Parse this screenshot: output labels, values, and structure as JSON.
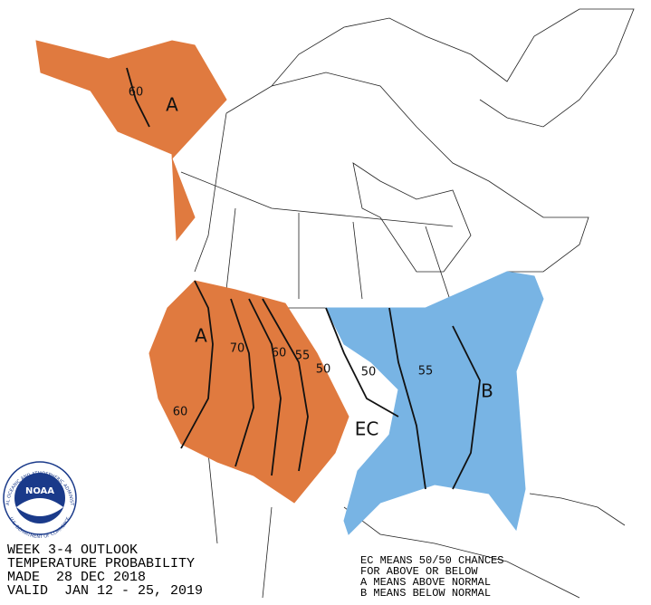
{
  "title_block": {
    "lines": [
      "WEEK 3-4 OUTLOOK",
      "TEMPERATURE PROBABILITY",
      "MADE  28 DEC 2018",
      "VALID  JAN 12 - 25, 2019"
    ]
  },
  "legend": {
    "lines": [
      "EC MEANS 50/50 CHANCES",
      "FOR ABOVE OR BELOW",
      "A MEANS ABOVE NORMAL",
      "B MEANS BELOW NORMAL"
    ]
  },
  "map_labels": [
    "60",
    "A",
    "A",
    "70",
    "60",
    "55",
    "50",
    "50",
    "55",
    "B",
    "EC",
    "60"
  ],
  "logo": {
    "name": "NOAA",
    "ring_top": "NATIONAL OCEANIC AND ATMOSPHERIC ADMINISTRATION",
    "ring_bottom": "U.S. DEPARTMENT OF COMMERCE"
  }
}
